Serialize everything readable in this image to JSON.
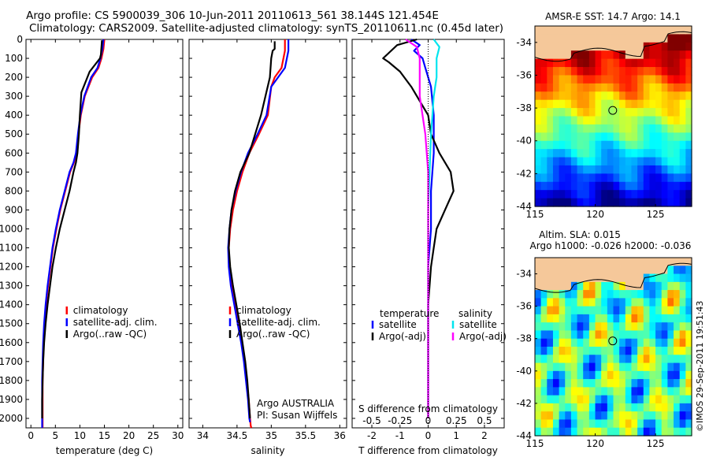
{
  "titles": {
    "line1": "Argo profile: CS 5900039_306 10-Jun-2011 20110613_561 38.144S 121.454E",
    "line2": "Climatology: CARS2009. Satellite-adjusted climatology: synTS_20110611.nc (0.45d later)"
  },
  "colors": {
    "climatology": "#ff0000",
    "satellite": "#0000ff",
    "argo": "#000000",
    "satellite_s": "#00e5ee",
    "argo_s": "#ff00ff"
  },
  "y_axis": {
    "ylim": [
      0,
      2050
    ],
    "ticks": [
      0,
      100,
      200,
      300,
      400,
      500,
      600,
      700,
      800,
      900,
      1000,
      1100,
      1200,
      1300,
      1400,
      1500,
      1600,
      1700,
      1800,
      1900,
      2000
    ]
  },
  "chart_data": [
    {
      "type": "line",
      "xlabel": "temperature (deg C)",
      "xlim": [
        -1,
        31
      ],
      "xticks": [
        0,
        5,
        10,
        15,
        20,
        25,
        30
      ],
      "legend_placement": "lower-center",
      "legend": [
        "climatology",
        "satellite-adj. clim.",
        "Argo(..raw -QC)"
      ],
      "series": [
        {
          "name": "climatology",
          "color": "#ff0000",
          "x": [
            15.0,
            14.8,
            14.4,
            13.8,
            12.5,
            11.0,
            10.2,
            9.7,
            9.3,
            8.8,
            8.0,
            7.0,
            6.0,
            5.2,
            4.5,
            4.0,
            3.5,
            3.1,
            2.8,
            2.6,
            2.5,
            2.4,
            2.4,
            2.4
          ],
          "y": [
            0,
            50,
            100,
            150,
            200,
            300,
            400,
            500,
            600,
            650,
            700,
            800,
            900,
            1000,
            1100,
            1200,
            1300,
            1400,
            1500,
            1600,
            1700,
            1800,
            1900,
            2050
          ]
        },
        {
          "name": "satellite-adj. clim.",
          "color": "#0000ff",
          "x": [
            14.8,
            14.6,
            14.2,
            13.6,
            12.3,
            10.9,
            10.1,
            9.6,
            9.2,
            8.7,
            7.9,
            6.9,
            5.9,
            5.1,
            4.4,
            3.9,
            3.4,
            3.0,
            2.7,
            2.5,
            2.4,
            2.3,
            2.3,
            2.3
          ],
          "y": [
            0,
            50,
            100,
            150,
            200,
            300,
            400,
            500,
            600,
            650,
            700,
            800,
            900,
            1000,
            1100,
            1200,
            1300,
            1400,
            1500,
            1600,
            1700,
            1800,
            1900,
            2050
          ]
        },
        {
          "name": "Argo(..raw -QC)",
          "color": "#000000",
          "x": [
            14.5,
            14.4,
            14.3,
            14.2,
            14.1,
            12.0,
            10.3,
            10.0,
            9.8,
            9.5,
            9.2,
            8.7,
            7.9,
            6.9,
            5.9,
            5.1,
            4.4,
            3.9,
            3.4,
            3.0,
            2.7,
            2.5,
            2.4,
            2.3,
            2.3
          ],
          "y": [
            5,
            40,
            80,
            90,
            100,
            170,
            280,
            400,
            500,
            600,
            650,
            700,
            800,
            900,
            1000,
            1100,
            1200,
            1300,
            1400,
            1500,
            1600,
            1700,
            1800,
            1900,
            2000
          ]
        }
      ]
    },
    {
      "type": "line",
      "xlabel": "salinity",
      "xlim": [
        33.8,
        36.1
      ],
      "xticks": [
        34,
        34.5,
        35,
        35.5,
        36
      ],
      "legend_placement": "lower-center",
      "legend": [
        "climatology",
        "satellite-adj. clim.",
        "Argo(..raw -QC)"
      ],
      "annotation": [
        "Argo AUSTRALIA",
        "PI: Susan Wijffels"
      ],
      "series": [
        {
          "name": "climatology",
          "color": "#ff0000",
          "x": [
            35.2,
            35.2,
            35.15,
            35.05,
            35.0,
            34.95,
            34.82,
            34.68,
            34.58,
            34.5,
            34.44,
            34.4,
            34.38,
            34.39,
            34.42,
            34.47,
            34.52,
            34.57,
            34.61,
            34.64,
            34.67,
            34.69,
            34.7,
            34.71
          ],
          "y": [
            0,
            60,
            150,
            200,
            250,
            400,
            500,
            600,
            700,
            800,
            900,
            1000,
            1100,
            1200,
            1300,
            1400,
            1500,
            1600,
            1700,
            1800,
            1900,
            2000,
            2040,
            2050
          ]
        },
        {
          "name": "satellite-adj. clim.",
          "color": "#0000ff",
          "x": [
            35.25,
            35.25,
            35.2,
            35.1,
            35.0,
            34.93,
            34.8,
            34.66,
            34.56,
            34.48,
            34.42,
            34.39,
            34.37,
            34.38,
            34.41,
            34.46,
            34.51,
            34.56,
            34.6,
            34.63,
            34.66,
            34.68,
            34.69
          ],
          "y": [
            0,
            60,
            150,
            200,
            250,
            400,
            500,
            600,
            700,
            800,
            900,
            1000,
            1100,
            1200,
            1300,
            1400,
            1500,
            1600,
            1700,
            1800,
            1900,
            2000,
            2020
          ]
        },
        {
          "name": "Argo(..raw -QC)",
          "color": "#000000",
          "x": [
            35.05,
            35.05,
            35.02,
            35.0,
            34.98,
            34.85,
            34.68,
            34.55,
            34.47,
            34.42,
            34.39,
            34.38,
            34.4,
            34.44,
            34.49,
            34.54,
            34.58,
            34.62,
            34.65,
            34.67,
            34.69
          ],
          "y": [
            10,
            50,
            60,
            100,
            200,
            400,
            600,
            700,
            800,
            900,
            1000,
            1100,
            1200,
            1300,
            1400,
            1500,
            1600,
            1700,
            1800,
            1900,
            2000
          ]
        }
      ]
    },
    {
      "type": "line",
      "xlabel": "T difference from climatology",
      "xlabel_top": "S difference from climatology",
      "xlim": [
        -2.7,
        2.7
      ],
      "xticks": [
        -2,
        -1,
        0,
        1,
        2
      ],
      "xticks_top_values": [
        -2.0,
        -1.0,
        0,
        1.0,
        2.0
      ],
      "xticks_top": [
        "-0.5",
        "-0.25",
        "0",
        "0.25",
        "0.5"
      ],
      "legend": {
        "temperature_heading": "temperature",
        "salinity_heading": "salinity",
        "temperature_items": [
          "satellite",
          "Argo(-adj)"
        ],
        "salinity_items": [
          "satellite",
          "Argo(-adj)"
        ]
      },
      "series": [
        {
          "name": "temperature satellite",
          "color": "#0000ff",
          "x": [
            -0.6,
            -0.3,
            -0.5,
            -0.2,
            -0.1,
            0.1,
            0.2,
            0.2,
            0.1,
            0.1,
            0.0,
            0.0,
            0.0,
            0.0,
            0.0,
            0.0
          ],
          "y": [
            0,
            30,
            60,
            100,
            150,
            250,
            400,
            600,
            800,
            1000,
            1200,
            1400,
            1600,
            1800,
            1900,
            2000
          ]
        },
        {
          "name": "temperature Argo(-adj)",
          "color": "#000000",
          "x": [
            -0.4,
            -1.1,
            -1.6,
            -1.4,
            -1.0,
            -0.6,
            -0.4,
            0.0,
            0.1,
            0.4,
            0.8,
            0.9,
            0.6,
            0.3,
            0.2,
            0.1,
            0.0,
            0.0,
            0.0,
            0.0
          ],
          "y": [
            0,
            30,
            100,
            120,
            170,
            250,
            300,
            400,
            500,
            600,
            700,
            800,
            900,
            1000,
            1100,
            1200,
            1400,
            1600,
            1800,
            2000
          ]
        },
        {
          "name": "salinity satellite",
          "color": "#00e5ee",
          "x": [
            0.2,
            0.4,
            0.3,
            0.3,
            0.2,
            0.15,
            0.1,
            0.05,
            0.0,
            0.0,
            0.0,
            0.0,
            0.0,
            0.0
          ],
          "y": [
            0,
            40,
            100,
            200,
            300,
            400,
            500,
            700,
            900,
            1100,
            1400,
            1700,
            1900,
            2000
          ]
        },
        {
          "name": "salinity Argo(-adj)",
          "color": "#ff00ff",
          "x": [
            -0.8,
            -0.4,
            -0.3,
            -0.3,
            -0.1,
            0.0,
            0.0,
            0.0,
            0.0,
            0.0
          ],
          "y": [
            0,
            40,
            100,
            300,
            500,
            700,
            1000,
            1400,
            1800,
            2000
          ]
        }
      ]
    },
    {
      "type": "heatmap",
      "title": "AMSR-E SST: 14.7 Argo: 14.1",
      "xlim": [
        115,
        128
      ],
      "ylim": [
        -44,
        -33
      ],
      "xticks": [
        115,
        120,
        125
      ],
      "yticks": [
        -34,
        -36,
        -38,
        -40,
        -42,
        -44
      ],
      "argo_location": {
        "lon": 121.454,
        "lat": -38.144
      }
    },
    {
      "type": "heatmap",
      "title": [
        "Altim. SLA: 0.015",
        "Argo h1000: -0.026 h2000: -0.036"
      ],
      "xlim": [
        115,
        128
      ],
      "ylim": [
        -44,
        -33
      ],
      "xticks": [
        115,
        120,
        125
      ],
      "yticks": [
        -34,
        -36,
        -38,
        -40,
        -42,
        -44
      ],
      "argo_location": {
        "lon": 121.454,
        "lat": -38.144
      }
    }
  ],
  "watermark": "©IMOS 29-Sep-2011 19:51:43"
}
